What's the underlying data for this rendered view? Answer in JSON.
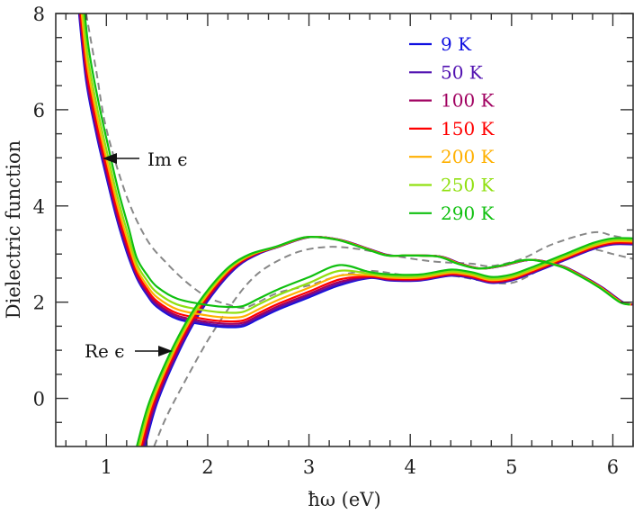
{
  "chart_data": {
    "type": "line",
    "title": "",
    "xlabel": "ħω (eV)",
    "ylabel": "Dielectric function",
    "xlim": [
      0.5,
      6.2
    ],
    "ylim": [
      -1,
      8
    ],
    "xticks": [
      1,
      2,
      3,
      4,
      5,
      6
    ],
    "yticks": [
      0,
      2,
      4,
      6,
      8
    ],
    "grid": false,
    "legend_position": "upper right",
    "legend": [
      {
        "label": "9 K",
        "color": "#1010e0"
      },
      {
        "label": "50 K",
        "color": "#5010b0"
      },
      {
        "label": "100 K",
        "color": "#a00060"
      },
      {
        "label": "150 K",
        "color": "#ff0000"
      },
      {
        "label": "200 K",
        "color": "#ffb000"
      },
      {
        "label": "250 K",
        "color": "#90e010"
      },
      {
        "label": "290 K",
        "color": "#10c010"
      }
    ],
    "annotations": [
      {
        "text": "Im ϵ",
        "x": 1.0,
        "y": 5.0,
        "arrow": "left"
      },
      {
        "text": "Re ϵ",
        "x": 1.5,
        "y": 1.0,
        "arrow": "right"
      }
    ],
    "series_im_9K": [
      [
        0.73,
        8
      ],
      [
        0.8,
        6.6
      ],
      [
        0.9,
        5.5
      ],
      [
        1.0,
        4.6
      ],
      [
        1.1,
        3.75
      ],
      [
        1.2,
        3.05
      ],
      [
        1.3,
        2.5
      ],
      [
        1.4,
        2.15
      ],
      [
        1.5,
        1.9
      ],
      [
        1.7,
        1.65
      ],
      [
        2.0,
        1.52
      ],
      [
        2.2,
        1.48
      ],
      [
        2.35,
        1.5
      ],
      [
        2.5,
        1.65
      ],
      [
        2.7,
        1.85
      ],
      [
        3.0,
        2.1
      ],
      [
        3.3,
        2.35
      ],
      [
        3.6,
        2.5
      ],
      [
        3.8,
        2.45
      ],
      [
        4.1,
        2.45
      ],
      [
        4.4,
        2.55
      ],
      [
        4.6,
        2.5
      ],
      [
        4.8,
        2.4
      ],
      [
        5.0,
        2.45
      ],
      [
        5.2,
        2.6
      ],
      [
        5.5,
        2.85
      ],
      [
        5.8,
        3.1
      ],
      [
        6.0,
        3.2
      ],
      [
        6.2,
        3.2
      ]
    ],
    "series_re_9K": [
      [
        1.38,
        -1
      ],
      [
        1.5,
        -0.1
      ],
      [
        1.7,
        0.9
      ],
      [
        1.9,
        1.7
      ],
      [
        2.1,
        2.3
      ],
      [
        2.3,
        2.75
      ],
      [
        2.5,
        3.0
      ],
      [
        2.7,
        3.15
      ],
      [
        3.0,
        3.35
      ],
      [
        3.3,
        3.3
      ],
      [
        3.6,
        3.1
      ],
      [
        3.8,
        2.97
      ],
      [
        4.0,
        2.97
      ],
      [
        4.3,
        2.95
      ],
      [
        4.5,
        2.8
      ],
      [
        4.7,
        2.7
      ],
      [
        4.9,
        2.75
      ],
      [
        5.2,
        2.88
      ],
      [
        5.5,
        2.75
      ],
      [
        5.7,
        2.55
      ],
      [
        5.9,
        2.3
      ],
      [
        6.1,
        2.0
      ],
      [
        6.2,
        1.95
      ]
    ],
    "temperature_offsets": {
      "im_y": [
        0,
        0.03,
        0.07,
        0.12,
        0.2,
        0.3,
        0.42
      ],
      "re_x": [
        0,
        -0.01,
        -0.02,
        -0.035,
        -0.05,
        -0.065,
        -0.08
      ]
    },
    "reference_im_dashed": [
      [
        0.8,
        8
      ],
      [
        0.9,
        6.8
      ],
      [
        1.0,
        5.6
      ],
      [
        1.2,
        4.2
      ],
      [
        1.4,
        3.3
      ],
      [
        1.6,
        2.8
      ],
      [
        1.8,
        2.4
      ],
      [
        2.0,
        2.1
      ],
      [
        2.2,
        1.95
      ],
      [
        2.35,
        1.88
      ],
      [
        2.5,
        2.0
      ],
      [
        2.7,
        2.2
      ],
      [
        3.0,
        2.35
      ],
      [
        3.3,
        2.55
      ],
      [
        3.6,
        2.65
      ],
      [
        4.0,
        2.55
      ],
      [
        4.4,
        2.55
      ],
      [
        4.7,
        2.45
      ],
      [
        5.0,
        2.4
      ],
      [
        5.3,
        2.7
      ],
      [
        5.6,
        3.05
      ],
      [
        5.8,
        3.1
      ],
      [
        6.0,
        3.0
      ],
      [
        6.2,
        2.9
      ]
    ],
    "reference_re_dashed": [
      [
        1.47,
        -1
      ],
      [
        1.6,
        -0.35
      ],
      [
        1.8,
        0.45
      ],
      [
        2.0,
        1.2
      ],
      [
        2.2,
        1.85
      ],
      [
        2.4,
        2.4
      ],
      [
        2.6,
        2.75
      ],
      [
        2.9,
        3.05
      ],
      [
        3.2,
        3.15
      ],
      [
        3.5,
        3.1
      ],
      [
        3.8,
        2.98
      ],
      [
        4.2,
        2.85
      ],
      [
        4.6,
        2.8
      ],
      [
        4.8,
        2.75
      ],
      [
        5.1,
        2.9
      ],
      [
        5.4,
        3.2
      ],
      [
        5.8,
        3.45
      ],
      [
        6.0,
        3.38
      ],
      [
        6.2,
        3.3
      ]
    ]
  }
}
